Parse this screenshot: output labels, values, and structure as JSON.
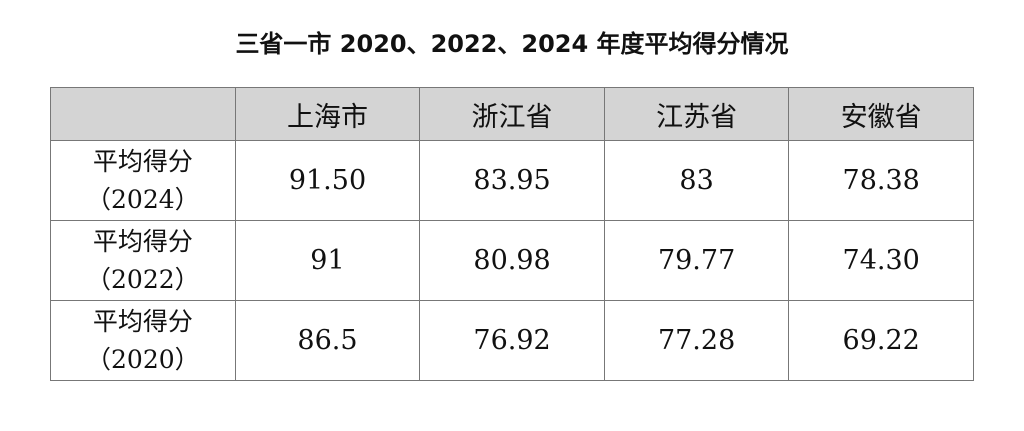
{
  "title": "三省一市 2020、2022、2024 年度平均得分情况",
  "table": {
    "columns": [
      "",
      "上海市",
      "浙江省",
      "江苏省",
      "安徽省"
    ],
    "rows": [
      {
        "label": "平均得分",
        "year": "（2024）",
        "values": [
          "91.50",
          "83.95",
          "83",
          "78.38"
        ]
      },
      {
        "label": "平均得分",
        "year": "（2022）",
        "values": [
          "91",
          "80.98",
          "79.77",
          "74.30"
        ]
      },
      {
        "label": "平均得分",
        "year": "（2020）",
        "values": [
          "86.5",
          "76.92",
          "77.28",
          "69.22"
        ]
      }
    ]
  }
}
